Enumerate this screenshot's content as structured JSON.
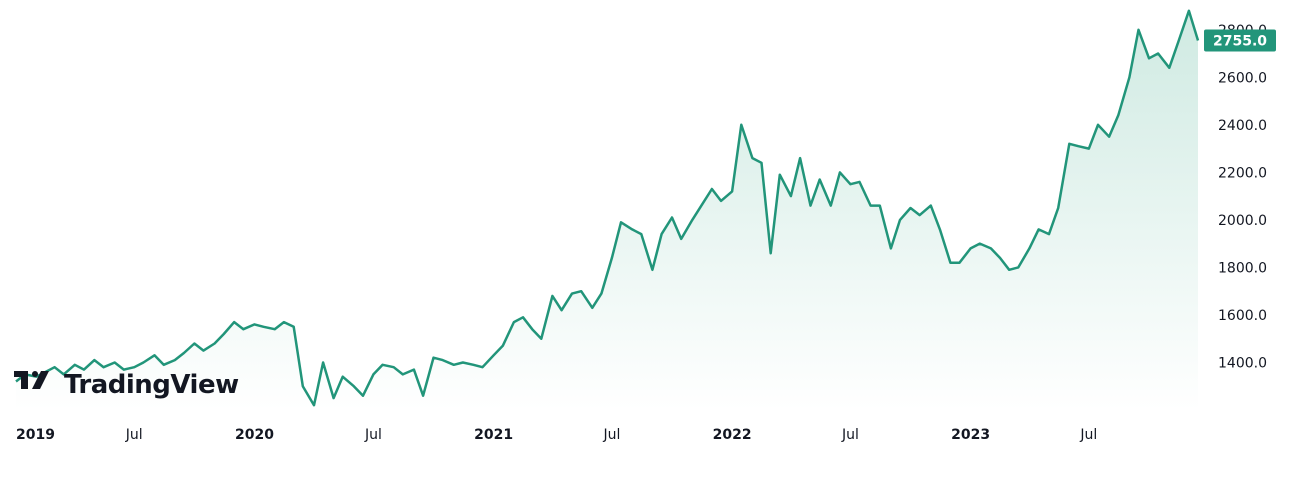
{
  "brand": {
    "name": "TradingView"
  },
  "colors": {
    "line": "#22957a",
    "fill_top": "#cfeae2",
    "fill_bottom": "#ffffff",
    "tag_bg": "#22957a",
    "text": "#131722"
  },
  "chart_data": {
    "type": "area",
    "ylim": [
      1200,
      2900
    ],
    "y_ticks": [
      1400,
      1600,
      1800,
      2000,
      2200,
      2400,
      2600,
      2800
    ],
    "y_tick_labels": [
      "1400.0",
      "1600.0",
      "1800.0",
      "2000.0",
      "2200.0",
      "2400.0",
      "2600.0",
      "2800.0"
    ],
    "x_range": [
      "2019-01-01",
      "2023-12-15"
    ],
    "x_ticks": [
      {
        "date": "2019-01-01",
        "label": "2019",
        "year": true
      },
      {
        "date": "2019-07-01",
        "label": "Jul",
        "year": false
      },
      {
        "date": "2020-01-01",
        "label": "2020",
        "year": true
      },
      {
        "date": "2020-07-01",
        "label": "Jul",
        "year": false
      },
      {
        "date": "2021-01-01",
        "label": "2021",
        "year": true
      },
      {
        "date": "2021-07-01",
        "label": "Jul",
        "year": false
      },
      {
        "date": "2022-01-01",
        "label": "2022",
        "year": true
      },
      {
        "date": "2022-07-01",
        "label": "Jul",
        "year": false
      },
      {
        "date": "2023-01-01",
        "label": "2023",
        "year": true
      },
      {
        "date": "2023-07-01",
        "label": "Jul",
        "year": false
      }
    ],
    "last_value_label": "2755.0",
    "last_value": 2755,
    "series": [
      {
        "dates": [
          "2019-01-01",
          "2019-01-15",
          "2019-02-01",
          "2019-02-15",
          "2019-03-01",
          "2019-03-15",
          "2019-04-01",
          "2019-04-15",
          "2019-05-01",
          "2019-05-15",
          "2019-06-01",
          "2019-06-15",
          "2019-07-01",
          "2019-07-15",
          "2019-08-01",
          "2019-08-15",
          "2019-09-01",
          "2019-09-15",
          "2019-10-01",
          "2019-10-15",
          "2019-11-01",
          "2019-11-15",
          "2019-12-01",
          "2019-12-15",
          "2020-01-01",
          "2020-01-15",
          "2020-02-01",
          "2020-02-15",
          "2020-03-01",
          "2020-03-15",
          "2020-04-01",
          "2020-04-15",
          "2020-05-01",
          "2020-05-15",
          "2020-06-01",
          "2020-06-15",
          "2020-07-01",
          "2020-07-15",
          "2020-08-01",
          "2020-08-15",
          "2020-09-01",
          "2020-09-15",
          "2020-10-01",
          "2020-10-15",
          "2020-11-01",
          "2020-11-15",
          "2020-12-01",
          "2020-12-15",
          "2021-01-01",
          "2021-01-15",
          "2021-02-01",
          "2021-02-15",
          "2021-03-01",
          "2021-03-15",
          "2021-04-01",
          "2021-04-15",
          "2021-05-01",
          "2021-05-15",
          "2021-06-01",
          "2021-06-15",
          "2021-07-01",
          "2021-07-15",
          "2021-08-01",
          "2021-08-15",
          "2021-09-01",
          "2021-09-15",
          "2021-10-01",
          "2021-10-15",
          "2021-11-01",
          "2021-11-15",
          "2021-12-01",
          "2021-12-15",
          "2022-01-01",
          "2022-01-15",
          "2022-02-01",
          "2022-02-15",
          "2022-03-01",
          "2022-03-15",
          "2022-04-01",
          "2022-04-15",
          "2022-05-01",
          "2022-05-15",
          "2022-06-01",
          "2022-06-15",
          "2022-07-01",
          "2022-07-15",
          "2022-08-01",
          "2022-08-15",
          "2022-09-01",
          "2022-09-15",
          "2022-10-01",
          "2022-10-15",
          "2022-11-01",
          "2022-11-15",
          "2022-12-01",
          "2022-12-15",
          "2023-01-01",
          "2023-01-15",
          "2023-02-01",
          "2023-02-15",
          "2023-03-01",
          "2023-03-15",
          "2023-04-01",
          "2023-04-15",
          "2023-05-01",
          "2023-05-15",
          "2023-06-01",
          "2023-06-15",
          "2023-07-01",
          "2023-07-15",
          "2023-08-01",
          "2023-08-15",
          "2023-09-01",
          "2023-09-15",
          "2023-10-01",
          "2023-10-15",
          "2023-11-01",
          "2023-11-15",
          "2023-12-01",
          "2023-12-15"
        ],
        "values": [
          1320,
          1350,
          1340,
          1360,
          1380,
          1350,
          1390,
          1370,
          1410,
          1380,
          1400,
          1370,
          1380,
          1400,
          1430,
          1390,
          1410,
          1440,
          1480,
          1450,
          1480,
          1520,
          1570,
          1540,
          1560,
          1550,
          1540,
          1570,
          1550,
          1300,
          1220,
          1400,
          1250,
          1340,
          1300,
          1260,
          1350,
          1390,
          1380,
          1350,
          1370,
          1260,
          1420,
          1410,
          1390,
          1400,
          1390,
          1380,
          1430,
          1470,
          1570,
          1590,
          1540,
          1500,
          1680,
          1620,
          1690,
          1700,
          1630,
          1690,
          1840,
          1990,
          1960,
          1940,
          1790,
          1940,
          2010,
          1920,
          2000,
          2060,
          2130,
          2080,
          2120,
          2400,
          2260,
          2240,
          1860,
          2190,
          2100,
          2260,
          2060,
          2170,
          2060,
          2200,
          2150,
          2160,
          2060,
          2060,
          1880,
          2000,
          2050,
          2020,
          2060,
          1960,
          1820,
          1820,
          1880,
          1900,
          1880,
          1840,
          1790,
          1800,
          1880,
          1960,
          1940,
          2050,
          2320,
          2310,
          2300,
          2400,
          2350,
          2440,
          2600,
          2800,
          2680,
          2700,
          2640,
          2750,
          2880,
          2755
        ]
      }
    ]
  }
}
